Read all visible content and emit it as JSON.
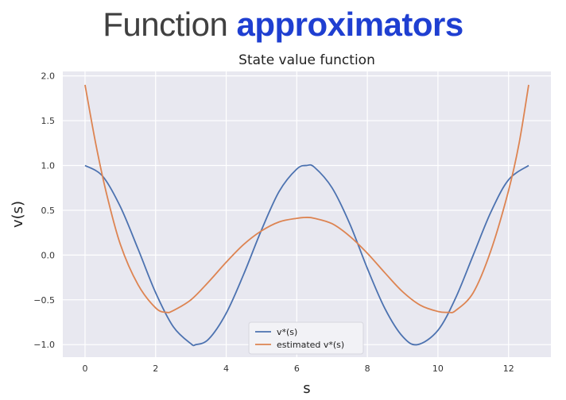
{
  "slide": {
    "title_plain": "Function",
    "title_accent": "approximators"
  },
  "colors": {
    "plot_bg": "#e8e8f0",
    "grid": "#ffffff",
    "series_true": "#4c72b0",
    "series_est": "#dd8452",
    "accent": "#1f3fd1"
  },
  "chart_data": {
    "type": "line",
    "title": "State value function",
    "xlabel": "s",
    "ylabel": "v(s)",
    "xlim": [
      -0.63,
      13.2
    ],
    "ylim": [
      -1.14,
      2.05
    ],
    "xticks": [
      0,
      2,
      4,
      6,
      8,
      10,
      12
    ],
    "xtick_labels": [
      "0",
      "2",
      "4",
      "6",
      "8",
      "10",
      "12"
    ],
    "yticks": [
      -1.0,
      -0.5,
      0.0,
      0.5,
      1.0,
      1.5,
      2.0
    ],
    "ytick_labels": [
      "−1.0",
      "−0.5",
      "0.0",
      "0.5",
      "1.0",
      "1.5",
      "2.0"
    ],
    "grid": true,
    "legend_position": "lower-center",
    "series": [
      {
        "name": "v*(s)",
        "x": [
          0,
          0.5,
          1.0,
          1.5,
          2.0,
          2.5,
          3.0,
          3.14,
          3.5,
          4.0,
          4.5,
          5.0,
          5.5,
          6.0,
          6.28,
          6.5,
          7.0,
          7.5,
          8.0,
          8.5,
          9.0,
          9.42,
          10.0,
          10.5,
          11.0,
          11.5,
          12.0,
          12.57
        ],
        "y": [
          1.0,
          0.88,
          0.54,
          0.07,
          -0.42,
          -0.8,
          -0.99,
          -1.0,
          -0.94,
          -0.65,
          -0.21,
          0.28,
          0.71,
          0.96,
          1.0,
          0.98,
          0.75,
          0.35,
          -0.15,
          -0.6,
          -0.91,
          -1.0,
          -0.84,
          -0.48,
          0.0,
          0.48,
          0.84,
          1.0
        ]
      },
      {
        "name": "estimated v*(s)",
        "x": [
          0,
          0.3,
          0.6,
          1.0,
          1.5,
          2.0,
          2.3,
          2.5,
          3.0,
          3.5,
          4.0,
          4.5,
          5.0,
          5.5,
          6.0,
          6.28,
          6.5,
          7.0,
          7.5,
          8.0,
          8.5,
          9.0,
          9.5,
          10.0,
          10.3,
          10.5,
          11.0,
          11.5,
          12.0,
          12.3,
          12.57
        ],
        "y": [
          1.9,
          1.25,
          0.7,
          0.12,
          -0.33,
          -0.59,
          -0.64,
          -0.62,
          -0.5,
          -0.3,
          -0.08,
          0.12,
          0.27,
          0.37,
          0.41,
          0.42,
          0.41,
          0.35,
          0.21,
          0.02,
          -0.2,
          -0.41,
          -0.56,
          -0.63,
          -0.64,
          -0.62,
          -0.42,
          0.05,
          0.72,
          1.25,
          1.9
        ]
      }
    ]
  }
}
